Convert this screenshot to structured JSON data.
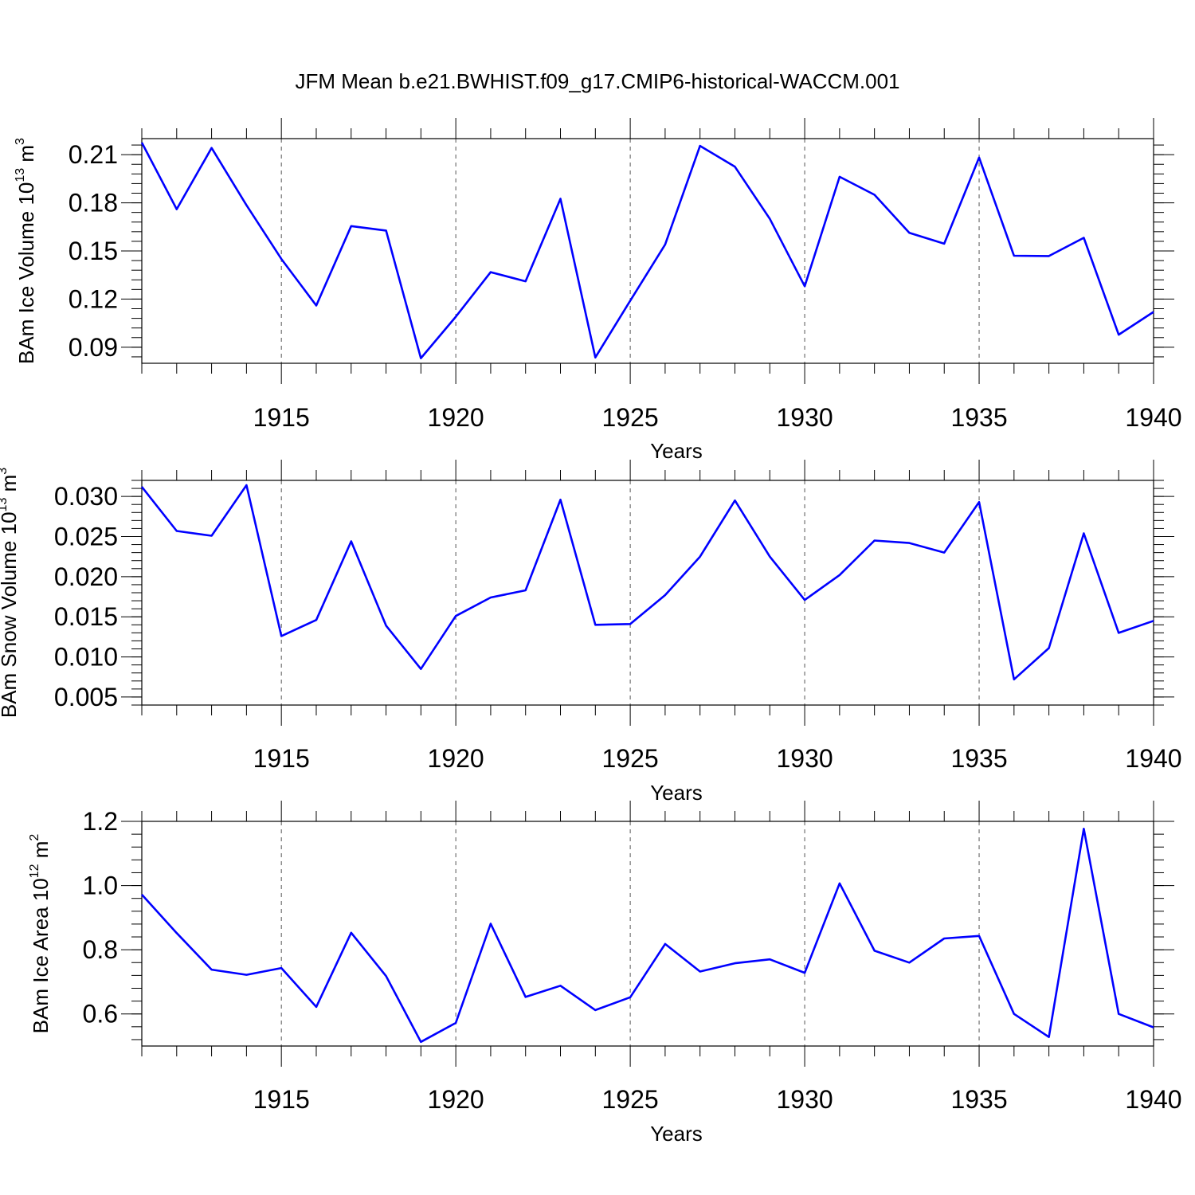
{
  "title": "JFM Mean b.e21.BWHIST.f09_g17.CMIP6-historical-WACCM.001",
  "colors": {
    "line": "#0000ff",
    "axis": "#000000",
    "grid": "#555555"
  },
  "chart_data": [
    {
      "type": "line",
      "xlabel": "Years",
      "ylabel": {
        "prefix": "BAm Ice Volume 10",
        "exp": "13",
        "unit": " m",
        "unit_exp": "3"
      },
      "xlim": [
        1911,
        1940
      ],
      "ylim": [
        0.08,
        0.22
      ],
      "x_major_ticks": [
        1915,
        1920,
        1925,
        1930,
        1935,
        1940
      ],
      "y_major_ticks": [
        0.09,
        0.12,
        0.15,
        0.18,
        0.21
      ],
      "y_tick_labels": [
        "0.09",
        "0.12",
        "0.15",
        "0.18",
        "0.21"
      ],
      "y_minor_step": 0.006,
      "x": [
        1911,
        1912,
        1913,
        1914,
        1915,
        1916,
        1917,
        1918,
        1919,
        1920,
        1921,
        1922,
        1923,
        1924,
        1925,
        1926,
        1927,
        1928,
        1929,
        1930,
        1931,
        1932,
        1933,
        1934,
        1935,
        1936,
        1937,
        1938,
        1939,
        1940
      ],
      "series": [
        {
          "name": "BAm Ice Volume",
          "values": [
            0.2175,
            0.176,
            0.2142,
            0.1785,
            0.145,
            0.116,
            0.1655,
            0.1627,
            0.0832,
            0.109,
            0.1368,
            0.1311,
            0.1825,
            0.0836,
            0.119,
            0.154,
            0.2155,
            0.2025,
            0.17,
            0.128,
            0.1962,
            0.185,
            0.1613,
            0.1545,
            0.2082,
            0.147,
            0.1468,
            0.1582,
            0.0978,
            0.112
          ]
        }
      ]
    },
    {
      "type": "line",
      "xlabel": "Years",
      "ylabel": {
        "prefix": "BAm Snow Volume 10",
        "exp": "13",
        "unit": " m",
        "unit_exp": "3"
      },
      "xlim": [
        1911,
        1940
      ],
      "ylim": [
        0.004,
        0.032
      ],
      "x_major_ticks": [
        1915,
        1920,
        1925,
        1930,
        1935,
        1940
      ],
      "y_major_ticks": [
        0.005,
        0.01,
        0.015,
        0.02,
        0.025,
        0.03
      ],
      "y_tick_labels": [
        "0.005",
        "0.010",
        "0.015",
        "0.020",
        "0.025",
        "0.030"
      ],
      "y_minor_step": 0.001,
      "x": [
        1911,
        1912,
        1913,
        1914,
        1915,
        1916,
        1917,
        1918,
        1919,
        1920,
        1921,
        1922,
        1923,
        1924,
        1925,
        1926,
        1927,
        1928,
        1929,
        1930,
        1931,
        1932,
        1933,
        1934,
        1935,
        1936,
        1937,
        1938,
        1939,
        1940
      ],
      "series": [
        {
          "name": "BAm Snow Volume",
          "values": [
            0.0312,
            0.0257,
            0.0251,
            0.0314,
            0.0126,
            0.0146,
            0.0244,
            0.0139,
            0.0085,
            0.0151,
            0.0174,
            0.0183,
            0.0296,
            0.014,
            0.0141,
            0.0177,
            0.0225,
            0.0295,
            0.0225,
            0.0171,
            0.0202,
            0.0245,
            0.0242,
            0.023,
            0.0293,
            0.0072,
            0.0111,
            0.0254,
            0.013,
            0.0145
          ]
        }
      ]
    },
    {
      "type": "line",
      "xlabel": "Years",
      "ylabel": {
        "prefix": "BAm Ice Area 10",
        "exp": "12",
        "unit": " m",
        "unit_exp": "2"
      },
      "xlim": [
        1911,
        1940
      ],
      "ylim": [
        0.5,
        1.2
      ],
      "x_major_ticks": [
        1915,
        1920,
        1925,
        1930,
        1935,
        1940
      ],
      "y_major_ticks": [
        0.6,
        0.8,
        1.0,
        1.2
      ],
      "y_tick_labels": [
        "0.6",
        "0.8",
        "1.0",
        "1.2"
      ],
      "y_minor_step": 0.04,
      "x": [
        1911,
        1912,
        1913,
        1914,
        1915,
        1916,
        1917,
        1918,
        1919,
        1920,
        1921,
        1922,
        1923,
        1924,
        1925,
        1926,
        1927,
        1928,
        1929,
        1930,
        1931,
        1932,
        1933,
        1934,
        1935,
        1936,
        1937,
        1938,
        1939,
        1940
      ],
      "series": [
        {
          "name": "BAm Ice Area",
          "values": [
            0.972,
            0.852,
            0.738,
            0.722,
            0.743,
            0.622,
            0.853,
            0.718,
            0.513,
            0.572,
            0.881,
            0.653,
            0.688,
            0.612,
            0.652,
            0.818,
            0.732,
            0.758,
            0.77,
            0.728,
            1.007,
            0.797,
            0.76,
            0.835,
            0.843,
            0.6,
            0.528,
            1.177,
            0.6,
            0.558
          ]
        }
      ]
    }
  ]
}
